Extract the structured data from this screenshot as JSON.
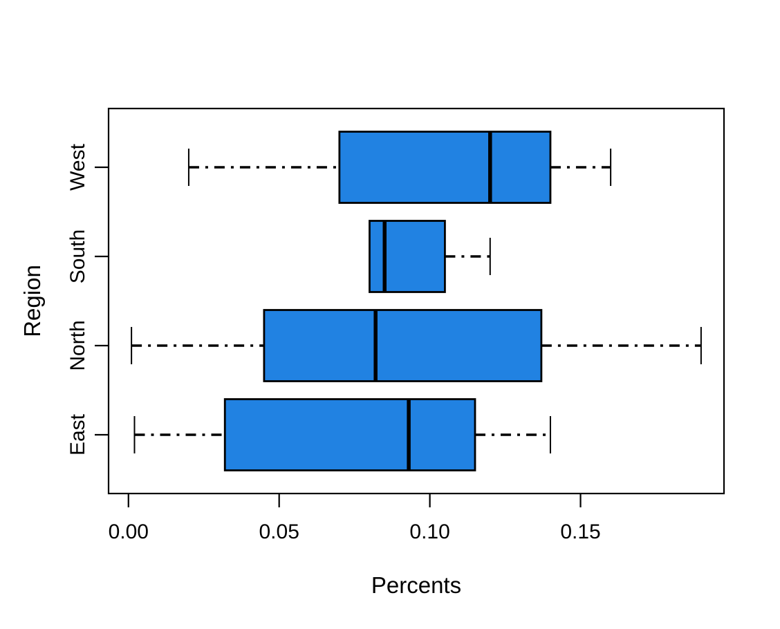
{
  "figure": {
    "background": "#FFFFFF",
    "description": "Horizontal boxplot of Percents by Region"
  },
  "chart_data": {
    "type": "boxplot",
    "orientation": "horizontal",
    "title": "",
    "xlabel": "Percents",
    "ylabel": "Region",
    "categories": [
      "East",
      "North",
      "South",
      "West"
    ],
    "x_tick_labels": [
      "0.00",
      "0.05",
      "0.10",
      "0.15"
    ],
    "x_tick_values": [
      0.0,
      0.05,
      0.1,
      0.15
    ],
    "xlim": [
      -0.0066,
      0.1976
    ],
    "grid": false,
    "legend": null,
    "whisker_linestyle": "dotdash",
    "colors": {
      "box_fill": "#2182E2",
      "stroke": "#000000",
      "background": "#FFFFFF"
    },
    "series": [
      {
        "name": "East",
        "whisker_low": 0.002,
        "q1": 0.032,
        "median": 0.093,
        "q3": 0.115,
        "whisker_high": 0.14
      },
      {
        "name": "North",
        "whisker_low": 0.001,
        "q1": 0.045,
        "median": 0.082,
        "q3": 0.137,
        "whisker_high": 0.19
      },
      {
        "name": "South",
        "whisker_low": 0.08,
        "q1": 0.08,
        "median": 0.085,
        "q3": 0.105,
        "whisker_high": 0.12
      },
      {
        "name": "West",
        "whisker_low": 0.02,
        "q1": 0.07,
        "median": 0.12,
        "q3": 0.14,
        "whisker_high": 0.16
      }
    ]
  }
}
